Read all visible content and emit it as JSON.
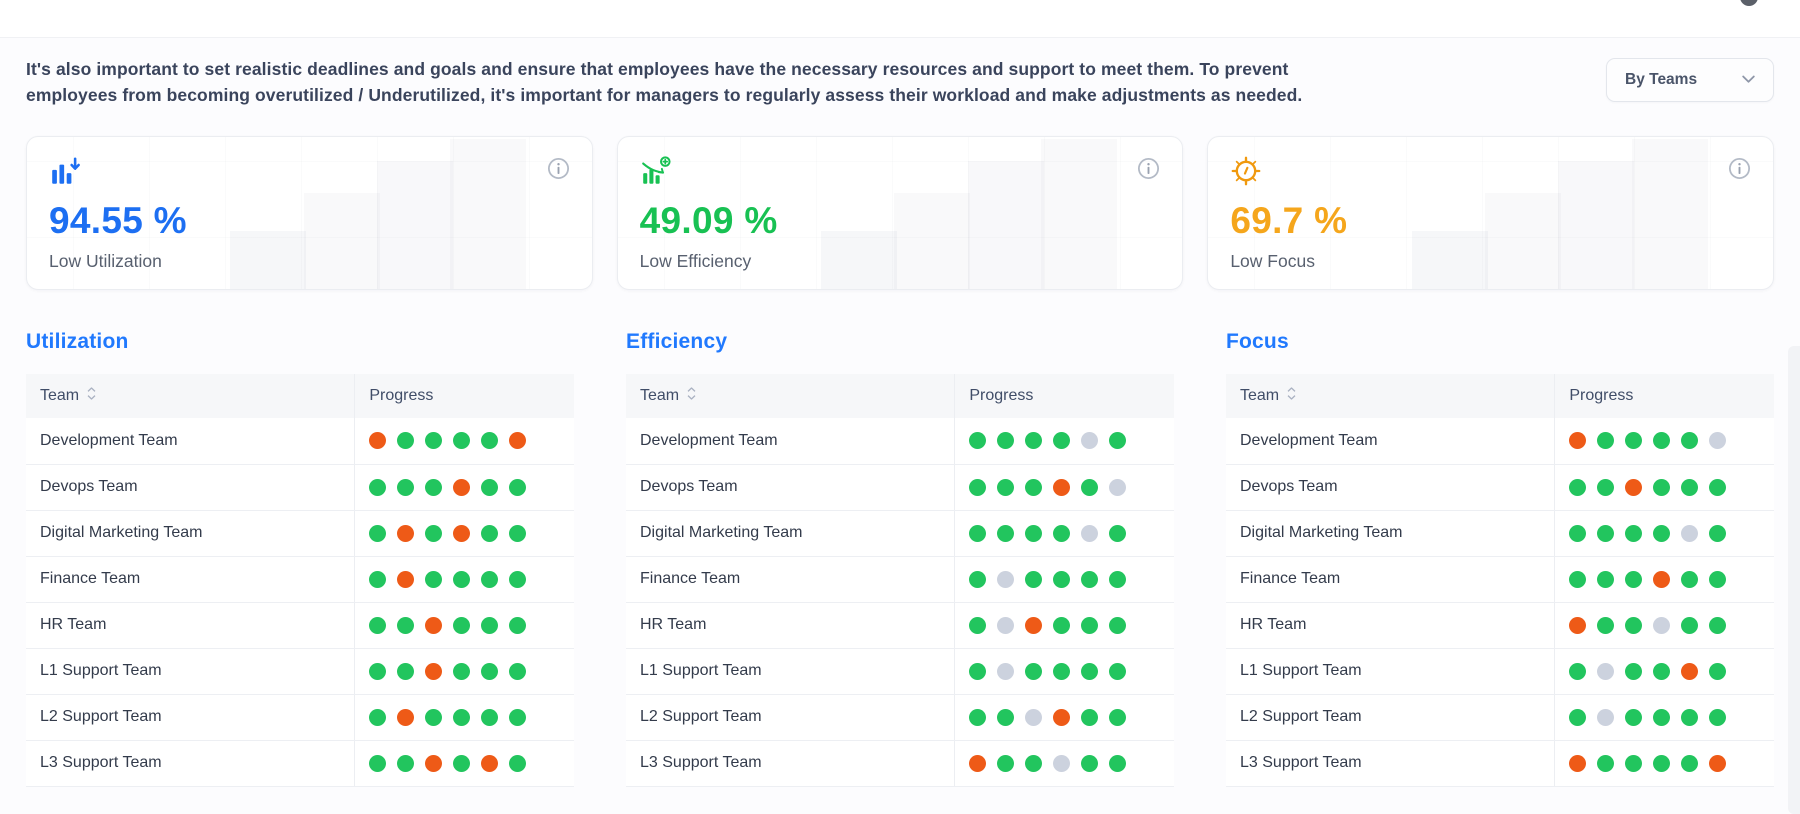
{
  "intro": {
    "text": "It's also important to set realistic deadlines and goals and ensure that employees have the necessary resources and support to meet them. To prevent employees from becoming overutilized / Underutilized, it's important for managers to regularly assess their workload and make adjustments as needed."
  },
  "filter": {
    "selected": "By Teams"
  },
  "kpis": [
    {
      "id": "low-utilization",
      "value": "94.55 %",
      "label": "Low Utilization",
      "value_color": "#1d6ff2",
      "icon": "bar-chart-decrease-icon",
      "icon_color": "#1d6ff2"
    },
    {
      "id": "low-efficiency",
      "value": "49.09 %",
      "label": "Low Efficiency",
      "value_color": "#18c153",
      "icon": "declining-chart-coin-icon",
      "icon_color": "#18c153"
    },
    {
      "id": "low-focus",
      "value": "69.7 %",
      "label": "Low Focus",
      "value_color": "#f5a61c",
      "icon": "target-clock-icon",
      "icon_color": "#f0990e"
    }
  ],
  "tables": [
    {
      "id": "utilization",
      "title": "Utilization",
      "columns": {
        "team": "Team",
        "progress": "Progress"
      },
      "rows": [
        {
          "team": "Development Team",
          "dots": [
            "orange",
            "green",
            "green",
            "green",
            "green",
            "orange"
          ]
        },
        {
          "team": "Devops Team",
          "dots": [
            "green",
            "green",
            "green",
            "orange",
            "green",
            "green"
          ]
        },
        {
          "team": "Digital Marketing Team",
          "dots": [
            "green",
            "orange",
            "green",
            "orange",
            "green",
            "green"
          ]
        },
        {
          "team": "Finance Team",
          "dots": [
            "green",
            "orange",
            "green",
            "green",
            "green",
            "green"
          ]
        },
        {
          "team": "HR Team",
          "dots": [
            "green",
            "green",
            "orange",
            "green",
            "green",
            "green"
          ]
        },
        {
          "team": "L1 Support Team",
          "dots": [
            "green",
            "green",
            "orange",
            "green",
            "green",
            "green"
          ]
        },
        {
          "team": "L2 Support Team",
          "dots": [
            "green",
            "orange",
            "green",
            "green",
            "green",
            "green"
          ]
        },
        {
          "team": "L3 Support Team",
          "dots": [
            "green",
            "green",
            "orange",
            "green",
            "orange",
            "green"
          ]
        }
      ]
    },
    {
      "id": "efficiency",
      "title": "Efficiency",
      "columns": {
        "team": "Team",
        "progress": "Progress"
      },
      "rows": [
        {
          "team": "Development Team",
          "dots": [
            "green",
            "green",
            "green",
            "green",
            "gray",
            "green"
          ]
        },
        {
          "team": "Devops Team",
          "dots": [
            "green",
            "green",
            "green",
            "orange",
            "green",
            "gray"
          ]
        },
        {
          "team": "Digital Marketing Team",
          "dots": [
            "green",
            "green",
            "green",
            "green",
            "gray",
            "green"
          ]
        },
        {
          "team": "Finance Team",
          "dots": [
            "green",
            "gray",
            "green",
            "green",
            "green",
            "green"
          ]
        },
        {
          "team": "HR Team",
          "dots": [
            "green",
            "gray",
            "orange",
            "green",
            "green",
            "green"
          ]
        },
        {
          "team": "L1 Support Team",
          "dots": [
            "green",
            "gray",
            "green",
            "green",
            "green",
            "green"
          ]
        },
        {
          "team": "L2 Support Team",
          "dots": [
            "green",
            "green",
            "gray",
            "orange",
            "green",
            "green"
          ]
        },
        {
          "team": "L3 Support Team",
          "dots": [
            "orange",
            "green",
            "green",
            "gray",
            "green",
            "green"
          ]
        }
      ]
    },
    {
      "id": "focus",
      "title": "Focus",
      "columns": {
        "team": "Team",
        "progress": "Progress"
      },
      "rows": [
        {
          "team": "Development Team",
          "dots": [
            "orange",
            "green",
            "green",
            "green",
            "green",
            "gray"
          ]
        },
        {
          "team": "Devops Team",
          "dots": [
            "green",
            "green",
            "orange",
            "green",
            "green",
            "green"
          ]
        },
        {
          "team": "Digital Marketing Team",
          "dots": [
            "green",
            "green",
            "green",
            "green",
            "gray",
            "green"
          ]
        },
        {
          "team": "Finance Team",
          "dots": [
            "green",
            "green",
            "green",
            "orange",
            "green",
            "green"
          ]
        },
        {
          "team": "HR Team",
          "dots": [
            "orange",
            "green",
            "green",
            "gray",
            "green",
            "green"
          ]
        },
        {
          "team": "L1 Support Team",
          "dots": [
            "green",
            "gray",
            "green",
            "green",
            "orange",
            "green"
          ]
        },
        {
          "team": "L2 Support Team",
          "dots": [
            "green",
            "gray",
            "green",
            "green",
            "green",
            "green"
          ]
        },
        {
          "team": "L3 Support Team",
          "dots": [
            "orange",
            "green",
            "green",
            "green",
            "green",
            "orange"
          ]
        }
      ]
    }
  ],
  "theme": {
    "heading_blue": "#2079fe",
    "header_bg": "#f6f7f9",
    "row_border": "#edeff3",
    "dot_colors": {
      "green": "#22c55e",
      "orange": "#ee5a17",
      "gray": "#ccd2de"
    }
  }
}
